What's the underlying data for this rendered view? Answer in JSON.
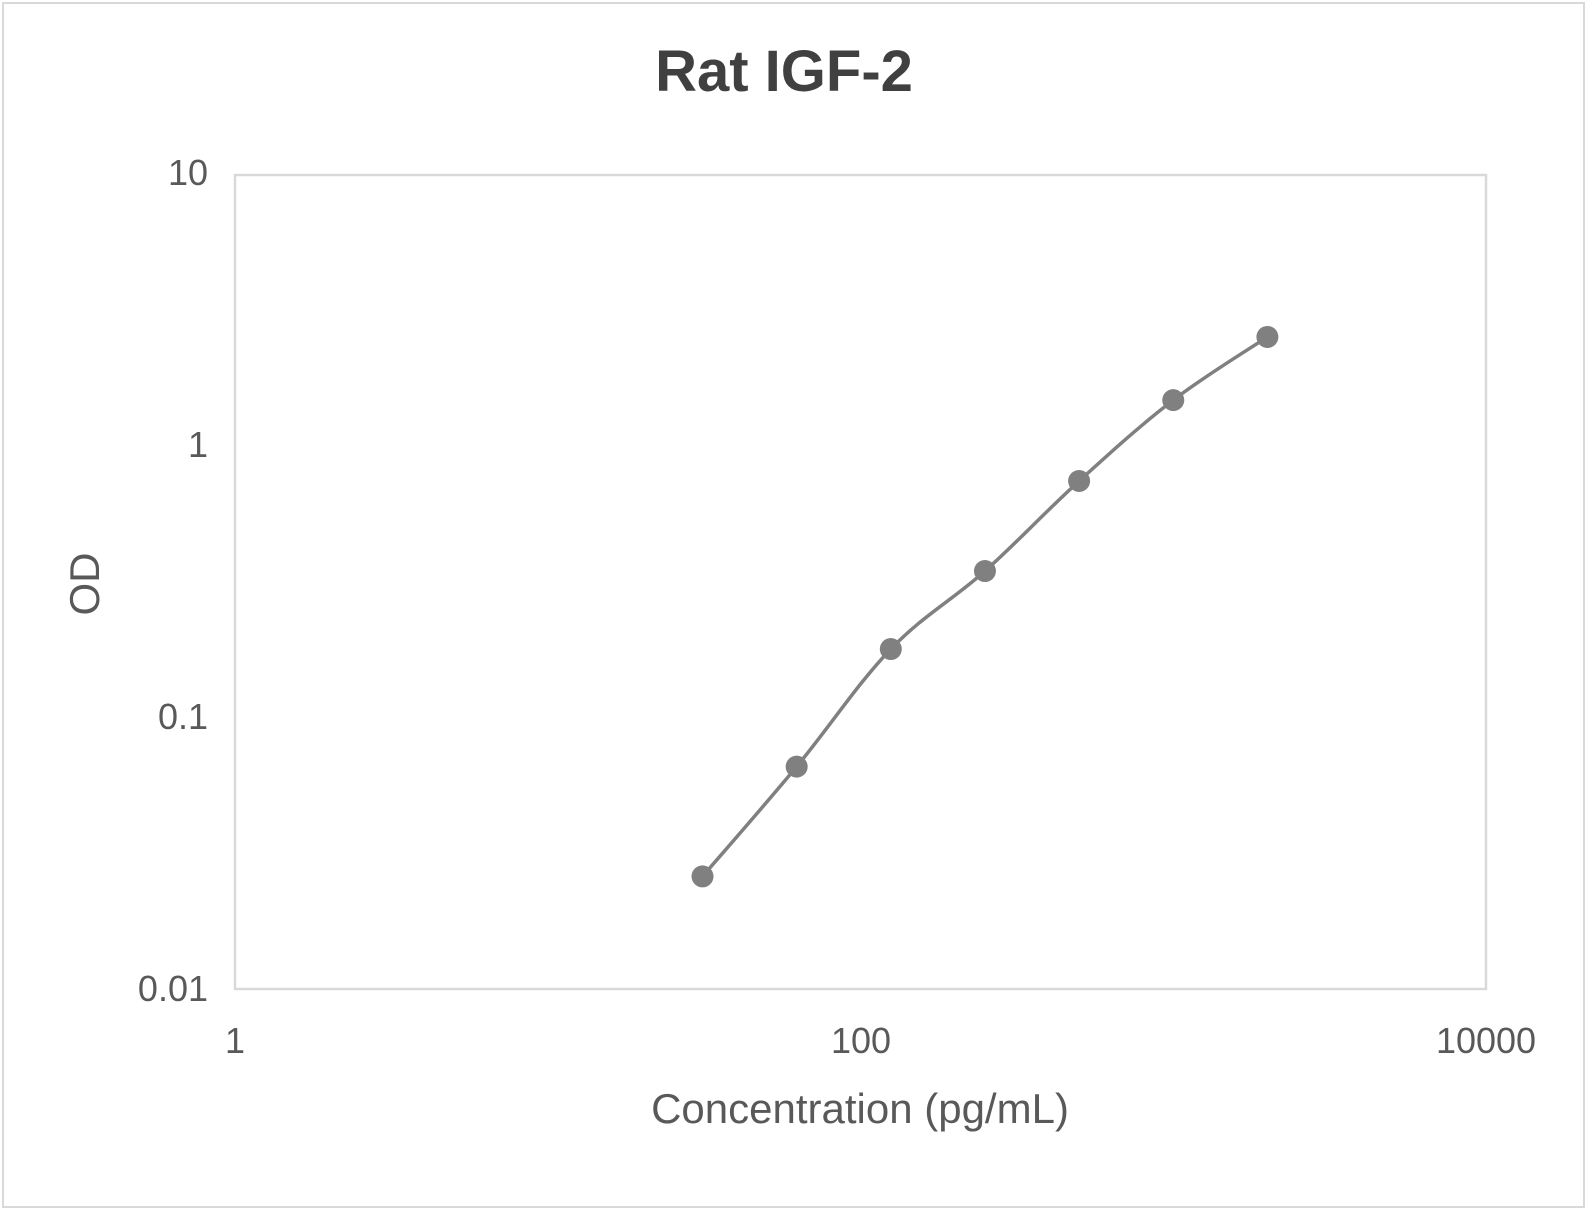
{
  "chart_data": {
    "type": "line",
    "title": "Rat IGF-2",
    "xlabel": "Concentration (pg/mL)",
    "ylabel": "OD",
    "xscale": "log",
    "yscale": "log",
    "xlim": [
      1,
      10000
    ],
    "ylim": [
      0.01,
      10
    ],
    "x_ticks": [
      "1",
      "100",
      "10000"
    ],
    "y_ticks": [
      "10",
      "1",
      "0.1",
      "0.01"
    ],
    "grid": false,
    "legend": null,
    "series": [
      {
        "name": "Rat IGF-2",
        "color": "#808080",
        "marker": "circle",
        "x": [
          31.25,
          62.5,
          125,
          250,
          500,
          1000,
          2000
        ],
        "y": [
          0.026,
          0.066,
          0.179,
          0.347,
          0.745,
          1.48,
          2.53
        ]
      }
    ]
  },
  "colors": {
    "series": "#808080",
    "axis_border": "#d9d9d9",
    "text": "#595959",
    "title": "#404040"
  }
}
